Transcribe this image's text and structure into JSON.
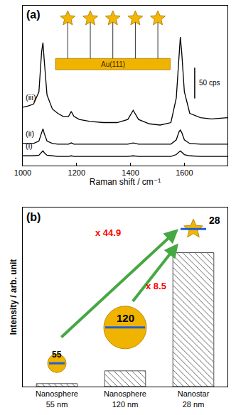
{
  "chart_data": [
    {
      "type": "line",
      "title": "(a)",
      "x_label": "Raman shift / cm⁻¹",
      "x": [
        1000,
        1020,
        1040,
        1060,
        1070,
        1075,
        1080,
        1090,
        1110,
        1130,
        1150,
        1170,
        1180,
        1190,
        1210,
        1250,
        1300,
        1350,
        1390,
        1410,
        1430,
        1470,
        1510,
        1550,
        1570,
        1580,
        1585,
        1590,
        1600,
        1620,
        1660,
        1700,
        1760
      ],
      "series": [
        {
          "name": "(i)",
          "color": "#000000",
          "values": [
            16,
            16,
            16,
            17,
            22,
            24,
            21,
            17,
            16,
            15,
            15,
            15,
            16,
            15,
            15,
            15,
            15,
            15,
            15,
            16,
            15,
            15,
            15,
            15,
            18,
            22,
            24,
            22,
            18,
            16,
            15,
            15,
            15
          ]
        },
        {
          "name": "(ii)",
          "color": "#000000",
          "values": [
            36,
            36,
            36,
            40,
            55,
            60,
            52,
            40,
            36,
            35,
            35,
            35,
            37,
            35,
            35,
            35,
            35,
            35,
            35,
            37,
            35,
            35,
            35,
            35,
            42,
            55,
            58,
            54,
            42,
            36,
            35,
            35,
            35
          ]
        },
        {
          "name": "(iii)",
          "color": "#000000",
          "values": [
            95,
            97,
            100,
            120,
            185,
            200,
            170,
            115,
            92,
            85,
            80,
            80,
            88,
            80,
            75,
            72,
            70,
            70,
            75,
            90,
            75,
            68,
            66,
            70,
            110,
            180,
            209,
            185,
            120,
            85,
            78,
            76,
            78
          ]
        }
      ],
      "xlim": [
        1000,
        1760
      ],
      "xticks": [
        1000,
        1200,
        1400,
        1600
      ],
      "ylim": [
        0,
        260
      ],
      "yticks": [],
      "tick_labels": "x",
      "grid": false,
      "scale_bar": {
        "value": 50,
        "label": "50 cps"
      },
      "inset_label": "Au(111)"
    },
    {
      "type": "bar",
      "title": "(b)",
      "y_label": "Intensity / arb. unit",
      "categories": [
        "Nanosphere 55 nm",
        "Nanosphere 120 nm",
        "Nanostar 28 nm"
      ],
      "values": [
        1,
        5.28,
        44.9
      ],
      "ylim": [
        0,
        60
      ],
      "yticks": [],
      "tick_labels": "x",
      "grid": false,
      "color": "#555555",
      "marker": "hatch",
      "particle_labels": [
        "55",
        "120",
        "28"
      ],
      "annotations": [
        {
          "text": "x 44.9",
          "color": "#ff0000"
        },
        {
          "text": "x 8.5",
          "color": "#ff0000"
        }
      ]
    }
  ]
}
